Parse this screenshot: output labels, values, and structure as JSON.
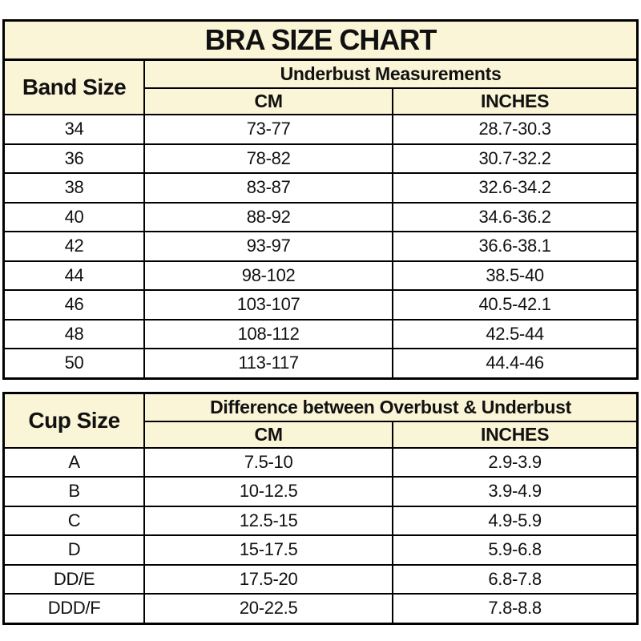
{
  "colors": {
    "header_background": "#FAF5D7",
    "border": "#000000",
    "text": "#111111",
    "row_background": "#ffffff"
  },
  "band_table": {
    "title": "BRA SIZE CHART",
    "row_header": "Band Size",
    "group_header": "Underbust Measurements",
    "col_headers": {
      "cm": "CM",
      "inches": "INCHES"
    },
    "rows": [
      {
        "size": "34",
        "cm": "73-77",
        "inches": "28.7-30.3"
      },
      {
        "size": "36",
        "cm": "78-82",
        "inches": "30.7-32.2"
      },
      {
        "size": "38",
        "cm": "83-87",
        "inches": "32.6-34.2"
      },
      {
        "size": "40",
        "cm": "88-92",
        "inches": "34.6-36.2"
      },
      {
        "size": "42",
        "cm": "93-97",
        "inches": "36.6-38.1"
      },
      {
        "size": "44",
        "cm": "98-102",
        "inches": "38.5-40"
      },
      {
        "size": "46",
        "cm": "103-107",
        "inches": "40.5-42.1"
      },
      {
        "size": "48",
        "cm": "108-112",
        "inches": "42.5-44"
      },
      {
        "size": "50",
        "cm": "113-117",
        "inches": "44.4-46"
      }
    ]
  },
  "cup_table": {
    "row_header": "Cup Size",
    "group_header": "Difference between Overbust & Underbust",
    "col_headers": {
      "cm": "CM",
      "inches": "INCHES"
    },
    "rows": [
      {
        "size": "A",
        "cm": "7.5-10",
        "inches": "2.9-3.9"
      },
      {
        "size": "B",
        "cm": "10-12.5",
        "inches": "3.9-4.9"
      },
      {
        "size": "C",
        "cm": "12.5-15",
        "inches": "4.9-5.9"
      },
      {
        "size": "D",
        "cm": "15-17.5",
        "inches": "5.9-6.8"
      },
      {
        "size": "DD/E",
        "cm": "17.5-20",
        "inches": "6.8-7.8"
      },
      {
        "size": "DDD/F",
        "cm": "20-22.5",
        "inches": "7.8-8.8"
      }
    ]
  }
}
